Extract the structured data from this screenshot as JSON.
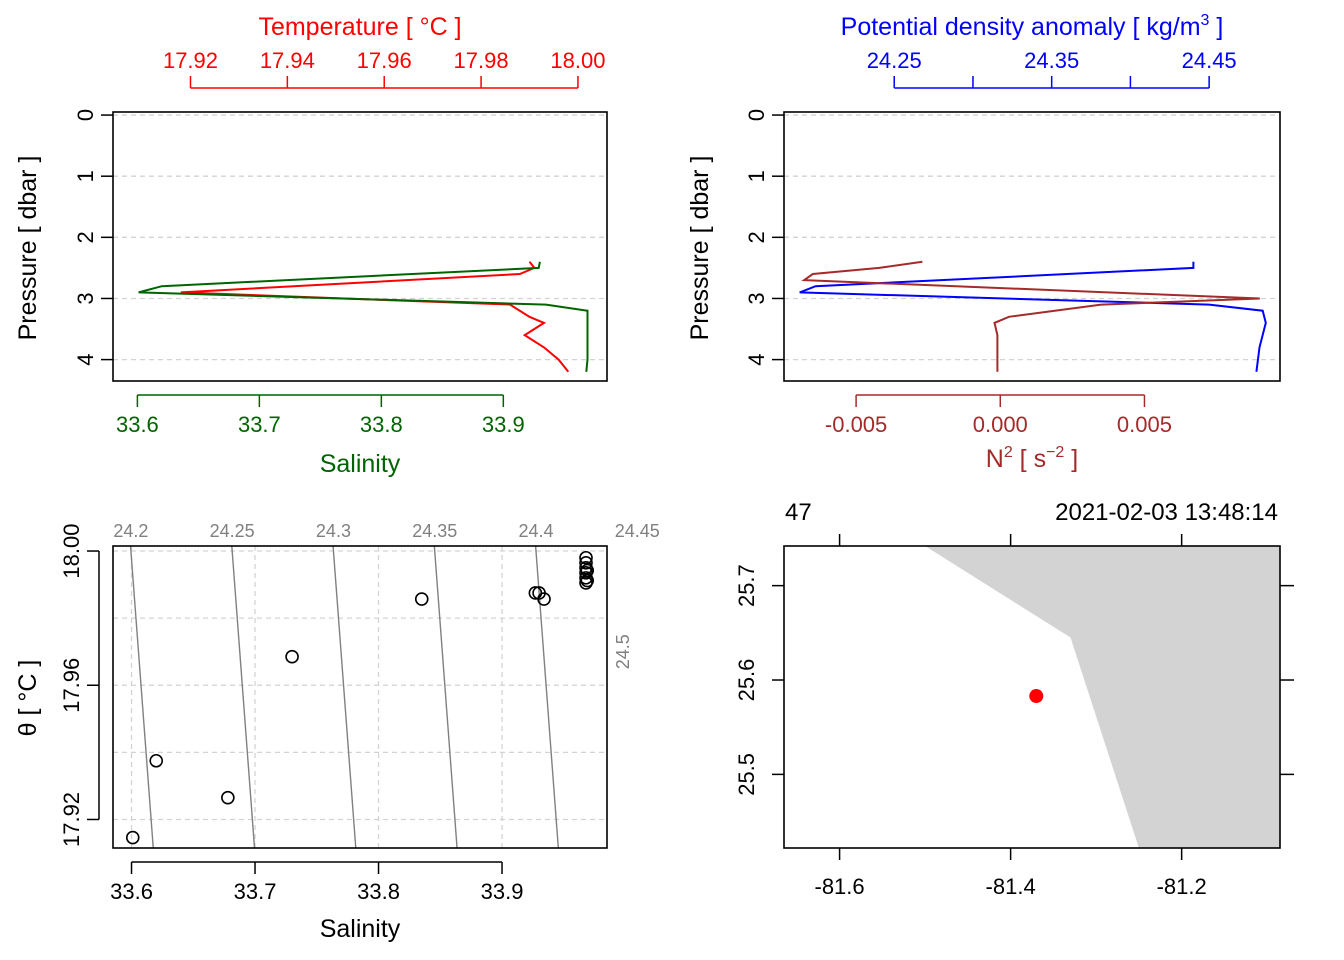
{
  "colors": {
    "temperature": "#ff0000",
    "salinity": "#006400",
    "density": "#0000ff",
    "n2": "#a52a2a",
    "isopycnal": "#808080",
    "grid": "#d3d3d3",
    "land": "#d3d3d3",
    "station": "#ff0000"
  },
  "chart_data": [
    {
      "type": "line",
      "panel": "profile-temperature-salinity",
      "title": "Temperature [ °C ]",
      "top_axis": {
        "label": "Temperature [ °C ]",
        "ticks": [
          "17.92",
          "17.94",
          "17.96",
          "17.98",
          "18.00"
        ],
        "range": [
          17.904,
          18.006
        ]
      },
      "xlabel": "Salinity",
      "bottom_axis": {
        "label": "Salinity",
        "ticks": [
          "33.6",
          "33.7",
          "33.8",
          "33.9"
        ],
        "range": [
          33.58,
          33.985
        ]
      },
      "ylabel": "Pressure [ dbar ]",
      "y_ticks": [
        "0",
        "1",
        "2",
        "3",
        "4"
      ],
      "ylim": [
        4.35,
        -0.05
      ],
      "grid": true,
      "series": [
        {
          "name": "Temperature",
          "axis": "top",
          "points": [
            [
              17.99,
              2.4
            ],
            [
              17.991,
              2.5
            ],
            [
              17.988,
              2.6
            ],
            [
              17.918,
              2.9
            ],
            [
              17.986,
              3.1
            ],
            [
              17.99,
              3.3
            ],
            [
              17.993,
              3.4
            ],
            [
              17.989,
              3.6
            ],
            [
              17.993,
              3.8
            ],
            [
              17.996,
              4.0
            ],
            [
              17.998,
              4.2
            ]
          ]
        },
        {
          "name": "Salinity",
          "axis": "bottom",
          "points": [
            [
              33.93,
              2.4
            ],
            [
              33.929,
              2.5
            ],
            [
              33.62,
              2.8
            ],
            [
              33.601,
              2.9
            ],
            [
              33.935,
              3.1
            ],
            [
              33.969,
              3.2
            ],
            [
              33.969,
              3.6
            ],
            [
              33.969,
              4.0
            ],
            [
              33.968,
              4.2
            ]
          ]
        }
      ]
    },
    {
      "type": "line",
      "panel": "profile-density-n2",
      "top_axis": {
        "label": "Potential density anomaly [ kg/m³ ]",
        "ticks": [
          "24.25",
          "24.35",
          "24.45"
        ],
        "minor_ticks": [
          24.3,
          24.4
        ],
        "range": [
          24.18,
          24.495
        ]
      },
      "xlabel": "N² [ s⁻² ]",
      "bottom_axis": {
        "label": "N² [ s⁻² ]",
        "ticks": [
          "-0.005",
          "0.000",
          "0.005"
        ],
        "range": [
          -0.0075,
          0.0097
        ]
      },
      "ylabel": "Pressure [ dbar ]",
      "y_ticks": [
        "0",
        "1",
        "2",
        "3",
        "4"
      ],
      "ylim": [
        4.35,
        -0.05
      ],
      "grid": true,
      "series": [
        {
          "name": "Potential density anomaly",
          "axis": "top",
          "points": [
            [
              24.44,
              2.4
            ],
            [
              24.44,
              2.5
            ],
            [
              24.2,
              2.8
            ],
            [
              24.19,
              2.9
            ],
            [
              24.45,
              3.1
            ],
            [
              24.484,
              3.2
            ],
            [
              24.486,
              3.4
            ],
            [
              24.482,
              3.8
            ],
            [
              24.48,
              4.2
            ]
          ]
        },
        {
          "name": "N2",
          "axis": "bottom",
          "points": [
            [
              -0.0027,
              2.4
            ],
            [
              -0.0042,
              2.5
            ],
            [
              -0.0065,
              2.6
            ],
            [
              -0.0068,
              2.7
            ],
            [
              0.009,
              3.0
            ],
            [
              0.0035,
              3.1
            ],
            [
              0.0003,
              3.3
            ],
            [
              -0.0002,
              3.4
            ],
            [
              -0.0001,
              3.6
            ],
            [
              -0.0001,
              4.2
            ]
          ]
        }
      ]
    },
    {
      "type": "scatter",
      "panel": "ts-diagram",
      "xlabel": "Salinity",
      "ylabel": "θ [ °C ]",
      "x_ticks": [
        "33.6",
        "33.7",
        "33.8",
        "33.9"
      ],
      "y_ticks": [
        "17.92",
        "17.96",
        "18.00"
      ],
      "xlim": [
        33.585,
        33.985
      ],
      "ylim": [
        17.9115,
        18.0015
      ],
      "grid": true,
      "isopycnals": [
        {
          "label": "24.2",
          "value": 24.2
        },
        {
          "label": "24.25",
          "value": 24.25
        },
        {
          "label": "24.3",
          "value": 24.3
        },
        {
          "label": "24.35",
          "value": 24.35
        },
        {
          "label": "24.4",
          "value": 24.4
        },
        {
          "label": "24.45",
          "value": 24.45
        },
        {
          "label": "24.5",
          "value": 24.5
        }
      ],
      "points": [
        [
          33.601,
          17.9146
        ],
        [
          33.62,
          17.9375
        ],
        [
          33.678,
          17.9265
        ],
        [
          33.73,
          17.9685
        ],
        [
          33.835,
          17.9857
        ],
        [
          33.927,
          17.9875
        ],
        [
          33.93,
          17.9875
        ],
        [
          33.934,
          17.9857
        ],
        [
          33.968,
          17.9905
        ],
        [
          33.968,
          17.992
        ],
        [
          33.968,
          17.9935
        ],
        [
          33.968,
          17.995
        ],
        [
          33.968,
          17.9965
        ],
        [
          33.968,
          17.998
        ],
        [
          33.969,
          17.9912
        ],
        [
          33.969,
          17.9942
        ]
      ]
    },
    {
      "type": "map",
      "panel": "station-map",
      "top_left_label": "47",
      "top_right_label": "2021-02-03 13:48:14",
      "x_ticks": [
        "-81.6",
        "-81.4",
        "-81.2"
      ],
      "y_ticks": [
        "25.5",
        "25.6",
        "25.7"
      ],
      "xlim": [
        -81.665,
        -81.085
      ],
      "ylim": [
        25.422,
        25.742
      ],
      "land_polygon": [
        [
          -81.5,
          25.742
        ],
        [
          -81.33,
          25.645
        ],
        [
          -81.25,
          25.422
        ],
        [
          -81.085,
          25.422
        ],
        [
          -81.085,
          25.742
        ]
      ],
      "station": {
        "lon": -81.37,
        "lat": 25.583
      }
    }
  ]
}
